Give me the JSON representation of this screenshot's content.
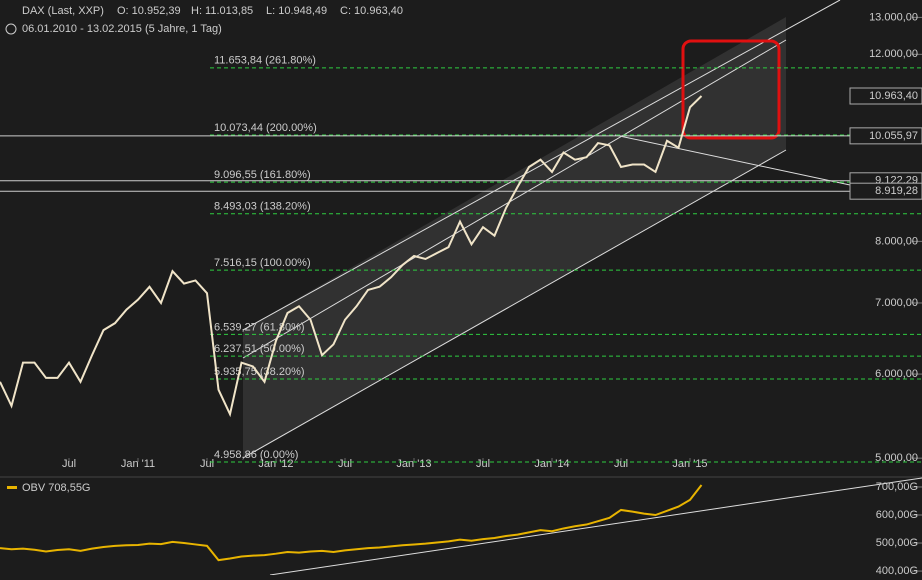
{
  "chart_data": [
    {
      "type": "line",
      "title": "DAX (Last, XXP)",
      "open": "O: 10.952,39",
      "high": "H: 11.013,85",
      "low": "L: 10.948,49",
      "close": "C: 10.963,40",
      "subtitle": "06.01.2010 - 13.02.2015 (5 Jahre, 1 Tag)",
      "log_scale": true,
      "x": [
        "2010-01",
        "2010-02",
        "2010-03",
        "2010-04",
        "2010-05",
        "2010-06",
        "2010-07",
        "2010-08",
        "2010-09",
        "2010-10",
        "2010-11",
        "2010-12",
        "2011-01",
        "2011-02",
        "2011-03",
        "2011-04",
        "2011-05",
        "2011-06",
        "2011-07",
        "2011-08",
        "2011-09",
        "2011-10",
        "2011-11",
        "2011-12",
        "2012-01",
        "2012-02",
        "2012-03",
        "2012-04",
        "2012-05",
        "2012-06",
        "2012-07",
        "2012-08",
        "2012-09",
        "2012-10",
        "2012-11",
        "2012-12",
        "2013-01",
        "2013-02",
        "2013-03",
        "2013-04",
        "2013-05",
        "2013-06",
        "2013-07",
        "2013-08",
        "2013-09",
        "2013-10",
        "2013-11",
        "2013-12",
        "2014-01",
        "2014-02",
        "2014-03",
        "2014-04",
        "2014-05",
        "2014-06",
        "2014-07",
        "2014-08",
        "2014-09",
        "2014-10",
        "2014-11",
        "2014-12",
        "2015-01",
        "2015-02"
      ],
      "series": [
        {
          "name": "DAX",
          "color": "#f0e4c8",
          "values": [
            5900,
            5600,
            6150,
            6150,
            5950,
            5950,
            6150,
            5900,
            6250,
            6600,
            6700,
            6900,
            7050,
            7250,
            7000,
            7500,
            7300,
            7350,
            7150,
            5800,
            5500,
            6150,
            6100,
            5900,
            6450,
            6850,
            6950,
            6750,
            6250,
            6400,
            6750,
            6950,
            7200,
            7250,
            7400,
            7600,
            7750,
            7700,
            7800,
            7900,
            8350,
            7950,
            8250,
            8100,
            8600,
            9000,
            9400,
            9550,
            9300,
            9700,
            9550,
            9600,
            9900,
            9850,
            9400,
            9450,
            9450,
            9300,
            9950,
            9800,
            10700,
            10963.4
          ]
        }
      ],
      "xticks": [
        {
          "value": "2010-07",
          "label": "Jul"
        },
        {
          "value": "2011-01",
          "label": "Jan '11"
        },
        {
          "value": "2011-07",
          "label": "Jul"
        },
        {
          "value": "2012-01",
          "label": "Jan '12"
        },
        {
          "value": "2012-07",
          "label": "Jul"
        },
        {
          "value": "2013-01",
          "label": "Jan '13"
        },
        {
          "value": "2013-07",
          "label": "Jul"
        },
        {
          "value": "2014-01",
          "label": "Jan '14"
        },
        {
          "value": "2014-07",
          "label": "Jul"
        },
        {
          "value": "2015-01",
          "label": "Jan '15"
        }
      ],
      "ylim": [
        4800,
        13500
      ],
      "yticks": [
        {
          "value": 5000,
          "label": "5.000,00"
        },
        {
          "value": 6000,
          "label": "6.000,00"
        },
        {
          "value": 7000,
          "label": "7.000,00"
        },
        {
          "value": 8000,
          "label": "8.000,00"
        },
        {
          "value": 12000,
          "label": "12.000,00"
        },
        {
          "value": 13000,
          "label": "13.000,00"
        }
      ],
      "fib_levels": [
        {
          "value": 11653.84,
          "label": "11.653,84 (261.80%)"
        },
        {
          "value": 10073.44,
          "label": "10.073,44 (200.00%)"
        },
        {
          "value": 9096.55,
          "label": "9.096,55 (161.80%)"
        },
        {
          "value": 8493.03,
          "label": "8.493,03 (138.20%)"
        },
        {
          "value": 7516.15,
          "label": "7.516,15 (100.00%)"
        },
        {
          "value": 6539.27,
          "label": "6.539,27 (61.80%)"
        },
        {
          "value": 6237.51,
          "label": "6.237,51 (50.00%)"
        },
        {
          "value": 5935.75,
          "label": "5.935,75 (38.20%)"
        },
        {
          "value": 4958.86,
          "label": "4.958,86 (0.00%)"
        }
      ],
      "price_labels": [
        {
          "value": 10963.4,
          "label": "10.963,40"
        },
        {
          "value": 10055.97,
          "label": "10.055,97"
        },
        {
          "value": 9122.29,
          "label": "9.122,29"
        },
        {
          "value": 8919.28,
          "label": "8.919,28"
        }
      ]
    },
    {
      "type": "line",
      "title": "OBV 708,55G",
      "series": [
        {
          "name": "OBV",
          "color": "#e8b400",
          "values": [
            482,
            478,
            480,
            476,
            470,
            475,
            478,
            472,
            480,
            486,
            490,
            492,
            493,
            498,
            496,
            504,
            500,
            495,
            490,
            439,
            445,
            452,
            455,
            457,
            462,
            468,
            466,
            470,
            472,
            468,
            474,
            478,
            482,
            484,
            488,
            492,
            495,
            498,
            502,
            506,
            512,
            508,
            514,
            518,
            525,
            530,
            538,
            546,
            542,
            552,
            560,
            566,
            578,
            590,
            618,
            612,
            605,
            600,
            615,
            630,
            654,
            707
          ]
        }
      ],
      "ylim": [
        386,
        732
      ],
      "yticks": [
        {
          "value": 400,
          "label": "400,00G"
        },
        {
          "value": 500,
          "label": "500,00G"
        },
        {
          "value": 600,
          "label": "600,00G"
        },
        {
          "value": 700,
          "label": "700,00G"
        }
      ]
    }
  ]
}
